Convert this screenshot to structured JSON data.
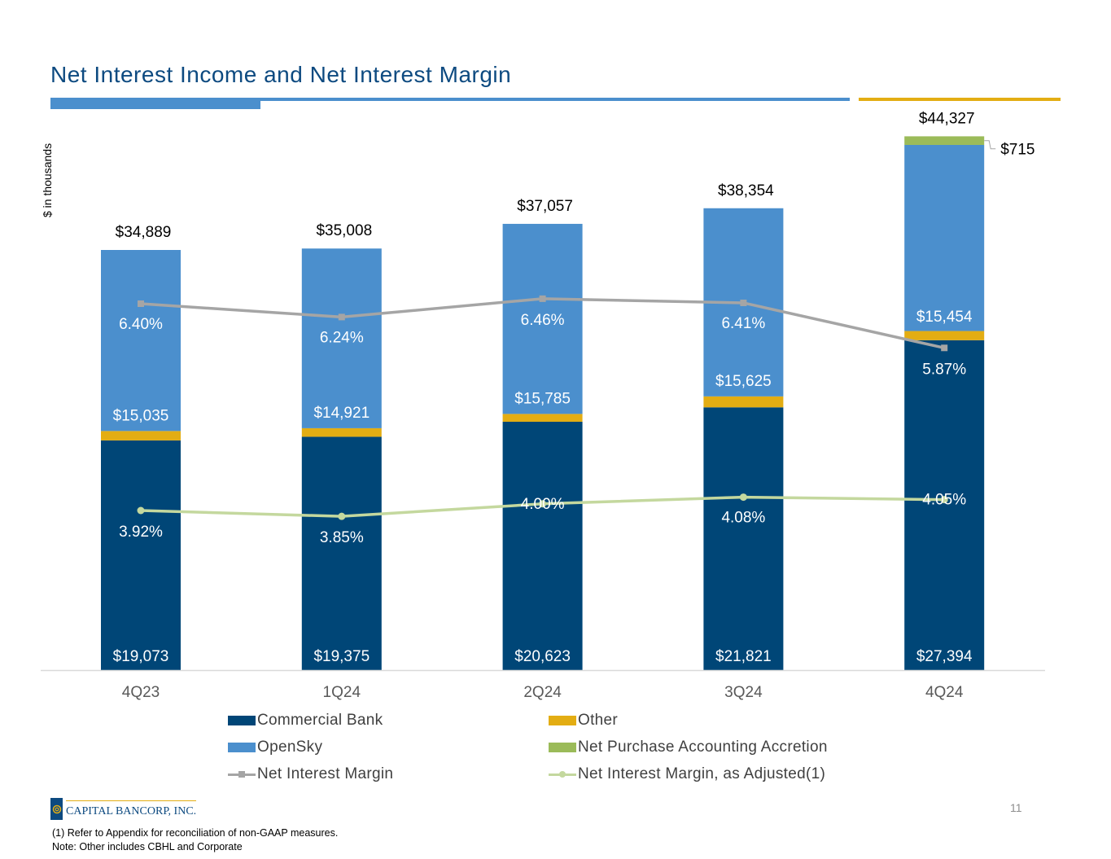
{
  "page": {
    "title": "Net Interest Income and Net Interest Margin",
    "y_unit_label": "$ in thousands",
    "page_number": "11",
    "footnotes": [
      "(1) Refer to Appendix for reconciliation of non-GAAP measures.",
      "Note: Other includes CBHL and Corporate"
    ],
    "logo_text": "CAPITAL BANCORP, INC."
  },
  "colors": {
    "commercial_bank": "#004677",
    "other": "#e3ad13",
    "opensky": "#4b8fcd",
    "accretion": "#9bbb59",
    "nim": "#a5a5a5",
    "nim_adjusted": "#c4d89e",
    "title": "#0d4a80"
  },
  "chart_data": {
    "type": "bar",
    "stacked": true,
    "categories": [
      "4Q23",
      "1Q24",
      "2Q24",
      "3Q24",
      "4Q24"
    ],
    "series": [
      {
        "key": "commercial_bank",
        "name": "Commercial Bank",
        "values": [
          19073,
          19375,
          20623,
          21821,
          27394
        ],
        "labels": [
          "$19,073",
          "$19,375",
          "$20,623",
          "$21,821",
          "$27,394"
        ]
      },
      {
        "key": "other",
        "name": "Other",
        "values": [
          781,
          712,
          649,
          908,
          764
        ]
      },
      {
        "key": "opensky",
        "name": "OpenSky",
        "values": [
          15035,
          14921,
          15785,
          15625,
          15454
        ],
        "labels": [
          "$15,035",
          "$14,921",
          "$15,785",
          "$15,625",
          "$15,454"
        ]
      },
      {
        "key": "accretion",
        "name": "Net Purchase Accounting Accretion",
        "values": [
          0,
          0,
          0,
          0,
          715
        ],
        "labels": [
          "",
          "",
          "",
          "",
          "$715"
        ]
      }
    ],
    "totals": [
      34889,
      35008,
      37057,
      38354,
      44327
    ],
    "total_labels": [
      "$34,889",
      "$35,008",
      "$37,057",
      "$38,354",
      "$44,327"
    ],
    "lines": [
      {
        "key": "nim",
        "name": "Net Interest Margin",
        "values": [
          6.4,
          6.24,
          6.46,
          6.41,
          5.87
        ],
        "labels": [
          "6.40%",
          "6.24%",
          "6.46%",
          "6.41%",
          "5.87%"
        ]
      },
      {
        "key": "nim_adjusted",
        "name": "Net Interest Margin, as Adjusted(1)",
        "values": [
          3.92,
          3.85,
          4.0,
          4.08,
          4.05
        ],
        "labels": [
          "3.92%",
          "3.85%",
          "4.00%",
          "4.08%",
          "4.05%"
        ]
      }
    ],
    "legend": [
      "Commercial Bank",
      "Other",
      "OpenSky",
      "Net Purchase Accounting Accretion",
      "Net Interest Margin",
      "Net Interest Margin, as Adjusted(1)"
    ],
    "legend_position": "bottom",
    "ylabel": "$ in thousands",
    "grid": false
  }
}
